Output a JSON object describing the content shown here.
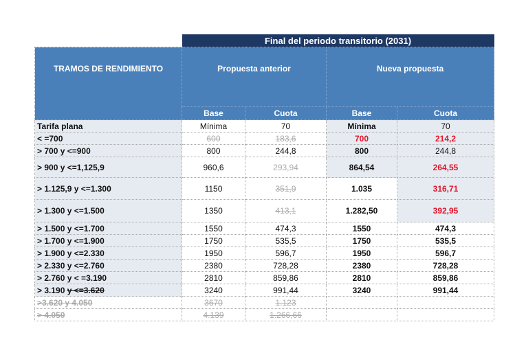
{
  "header": {
    "period": "Final del periodo transitorio (2031)",
    "tramos": "TRAMOS DE RENDIMIENTO",
    "anterior": "Propuesta anterior",
    "nueva": "Nueva propuesta",
    "base": "Base",
    "cuota": "Cuota"
  },
  "colors": {
    "dark_header": "#1e3864",
    "header": "#4a80ba",
    "shade": "#e6ebf2",
    "highlight_red": "#e0162b",
    "struck_gray": "#aaaaaa"
  },
  "rows": [
    {
      "tramo": "Tarifa plana",
      "ant_base": "Mínima",
      "ant_cuota": "70",
      "new_base": "Mínima",
      "new_cuota": "70"
    },
    {
      "tramo": "< =700",
      "ant_base": "600",
      "ant_cuota": "183,6",
      "new_base": "700",
      "new_cuota": "214,2"
    },
    {
      "tramo": "> 700 y <=900",
      "ant_base": "800",
      "ant_cuota": "244,8",
      "new_base": "800",
      "new_cuota": "244,8"
    },
    {
      "tramo": "> 900 y <=1,125,9",
      "ant_base": "960,6",
      "ant_cuota": "293,94",
      "new_base": "864,54",
      "new_cuota": "264,55"
    },
    {
      "tramo": "> 1.125,9 y <=1.300",
      "ant_base": "1150",
      "ant_cuota": "351,9",
      "new_base": "1.035",
      "new_cuota": "316,71"
    },
    {
      "tramo": "> 1.300 y <=1.500",
      "ant_base": "1350",
      "ant_cuota": "413,1",
      "new_base": "1.282,50",
      "new_cuota": "392,95"
    },
    {
      "tramo": "> 1.500 y <=1.700",
      "ant_base": "1550",
      "ant_cuota": "474,3",
      "new_base": "1550",
      "new_cuota": "474,3"
    },
    {
      "tramo": "> 1.700 y <=1.900",
      "ant_base": "1750",
      "ant_cuota": "535,5",
      "new_base": "1750",
      "new_cuota": "535,5"
    },
    {
      "tramo": "> 1.900 y <=2.330",
      "ant_base": "1950",
      "ant_cuota": "596,7",
      "new_base": "1950",
      "new_cuota": "596,7"
    },
    {
      "tramo": "> 2.330 y <=2.760",
      "ant_base": "2380",
      "ant_cuota": "728,28",
      "new_base": "2380",
      "new_cuota": "728,28"
    },
    {
      "tramo": "> 2.760 y < =3.190",
      "ant_base": "2810",
      "ant_cuota": "859,86",
      "new_base": "2810",
      "new_cuota": "859,86"
    },
    {
      "tramo_a": "> 3.190 ",
      "tramo_b": "y <=3.620",
      "ant_base": "3240",
      "ant_cuota": "991,44",
      "new_base": "3240",
      "new_cuota": "991,44"
    },
    {
      "tramo": ">3.620 y 4.050",
      "ant_base": "3670",
      "ant_cuota": "1.123",
      "new_base": "",
      "new_cuota": ""
    },
    {
      "tramo": "> 4.050",
      "ant_base": "4.139",
      "ant_cuota": "1.266,66",
      "new_base": "",
      "new_cuota": ""
    }
  ]
}
